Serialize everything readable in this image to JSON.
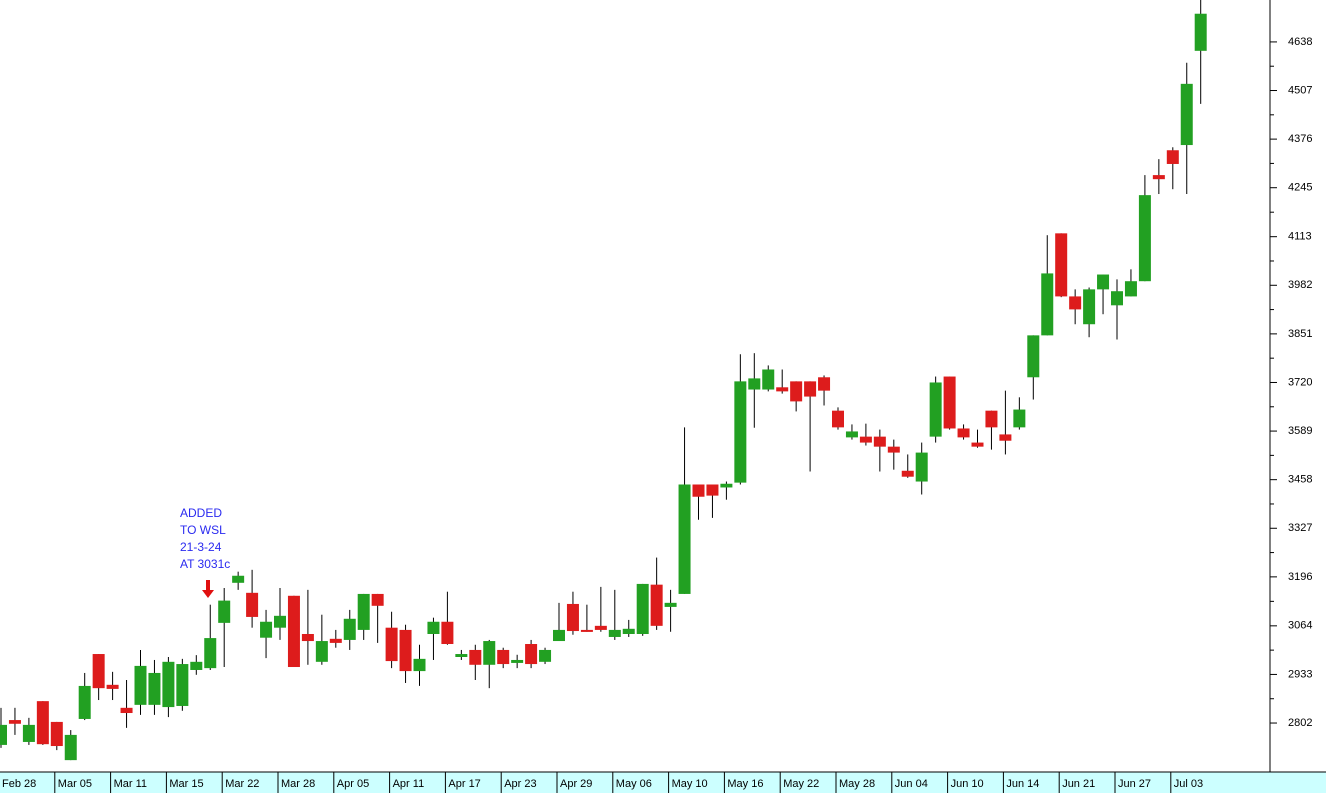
{
  "chart_data": {
    "type": "candlestick",
    "categories": [
      "Feb 28",
      null,
      null,
      null,
      "Mar 05",
      null,
      null,
      null,
      "Mar 11",
      null,
      null,
      null,
      "Mar 15",
      null,
      null,
      null,
      "Mar 22",
      null,
      null,
      null,
      "Mar 28",
      null,
      null,
      null,
      "Apr 05",
      null,
      null,
      null,
      "Apr 11",
      null,
      null,
      null,
      "Apr 17",
      null,
      null,
      null,
      "Apr 23",
      null,
      null,
      null,
      "Apr 29",
      null,
      null,
      null,
      "May 06",
      null,
      null,
      null,
      "May 10",
      null,
      null,
      null,
      "May 16",
      null,
      null,
      null,
      "May 22",
      null,
      null,
      null,
      "May 28",
      null,
      null,
      null,
      "Jun 04",
      null,
      null,
      null,
      "Jun 10",
      null,
      null,
      null,
      "Jun 14",
      null,
      null,
      null,
      "Jun 21",
      null,
      null,
      null,
      "Jun 27",
      null,
      null,
      null,
      "Jul 03",
      null,
      null
    ],
    "open": [
      2743,
      2810,
      2751,
      2861,
      2805,
      2702,
      2813,
      2988,
      2905,
      2843,
      2851,
      2851,
      2845,
      2848,
      2945,
      2950,
      3072,
      3180,
      3153,
      3032,
      3059,
      3145,
      3042,
      2967,
      3029,
      3026,
      3053,
      3150,
      3059,
      3053,
      2942,
      3042,
      3075,
      2980,
      2999,
      2959,
      2999,
      2964,
      3015,
      2967,
      3023,
      3123,
      3053,
      3064,
      3034,
      3042,
      3042,
      3175,
      3115,
      3150,
      3445,
      3445,
      3437,
      3450,
      3701,
      3701,
      3707,
      3723,
      3723,
      3734,
      3644,
      3572,
      3574,
      3574,
      3547,
      3482,
      3453,
      3574,
      3736,
      3596,
      3558,
      3644,
      3580,
      3599,
      3734,
      3847,
      4122,
      3952,
      3877,
      3971,
      3928,
      3952,
      3993,
      4279,
      4346,
      4360,
      4614
    ],
    "high": [
      2843,
      2843,
      2816,
      2861,
      2805,
      2783,
      2937,
      2988,
      2940,
      2918,
      2999,
      2972,
      2980,
      2975,
      2985,
      3121,
      3166,
      3210,
      3215,
      3107,
      3166,
      3145,
      3161,
      3094,
      3053,
      3107,
      3150,
      3150,
      3102,
      3067,
      3013,
      3086,
      3156,
      2999,
      3013,
      3026,
      3005,
      2986,
      3026,
      3005,
      3126,
      3156,
      3121,
      3169,
      3161,
      3080,
      3177,
      3248,
      3161,
      3599,
      3445,
      3445,
      3453,
      3796,
      3799,
      3766,
      3755,
      3723,
      3723,
      3739,
      3653,
      3607,
      3609,
      3593,
      3566,
      3526,
      3558,
      3736,
      3736,
      3607,
      3593,
      3644,
      3698,
      3680,
      3847,
      4117,
      4122,
      3971,
      3976,
      4011,
      3998,
      4025,
      4279,
      4322,
      4354,
      4582,
      4751
    ],
    "low": [
      2735,
      2770,
      2743,
      2743,
      2729,
      2702,
      2810,
      2864,
      2864,
      2789,
      2824,
      2824,
      2818,
      2835,
      2932,
      2945,
      2953,
      3161,
      3059,
      2977,
      3026,
      2953,
      2959,
      2959,
      3005,
      2999,
      3026,
      3018,
      2950,
      2910,
      2902,
      2972,
      3013,
      2972,
      2918,
      2896,
      2950,
      2950,
      2950,
      2961,
      3023,
      3040,
      3048,
      3048,
      3026,
      3034,
      3037,
      3053,
      3048,
      3150,
      3350,
      3355,
      3404,
      3445,
      3598,
      3696,
      3690,
      3642,
      3480,
      3658,
      3593,
      3566,
      3550,
      3480,
      3485,
      3463,
      3418,
      3558,
      3593,
      3566,
      3544,
      3539,
      3526,
      3593,
      3674,
      3847,
      3950,
      3877,
      3842,
      3904,
      3836,
      3952,
      3993,
      4228,
      4241,
      4228,
      4471
    ],
    "close": [
      2797,
      2800,
      2797,
      2745,
      2740,
      2770,
      2902,
      2896,
      2894,
      2829,
      2956,
      2937,
      2967,
      2961,
      2967,
      3031,
      3132,
      3199,
      3088,
      3075,
      3091,
      2953,
      3023,
      3023,
      3018,
      3083,
      3150,
      3118,
      2969,
      2942,
      2975,
      3075,
      3015,
      2988,
      2959,
      3023,
      2961,
      2972,
      2961,
      2999,
      3053,
      3050,
      3048,
      3053,
      3053,
      3056,
      3177,
      3064,
      3126,
      3445,
      3412,
      3415,
      3447,
      3723,
      3731,
      3755,
      3696,
      3669,
      3682,
      3698,
      3599,
      3588,
      3558,
      3547,
      3531,
      3466,
      3531,
      3720,
      3596,
      3572,
      3547,
      3599,
      3563,
      3647,
      3847,
      4014,
      3952,
      3917,
      3971,
      4011,
      3966,
      3993,
      4225,
      4268,
      4309,
      4525,
      4714
    ],
    "up_color": "#22a022",
    "down_color": "#dd1c1c",
    "ylim": [
      2670,
      4751
    ],
    "yticks": [
      2802,
      2933,
      3064,
      3196,
      3327,
      3458,
      3589,
      3720,
      3851,
      3982,
      4113,
      4245,
      4376,
      4507,
      4638
    ],
    "annotation": [
      "ADDED",
      "TO WSL",
      "21-3-24",
      "AT 3031c"
    ]
  }
}
